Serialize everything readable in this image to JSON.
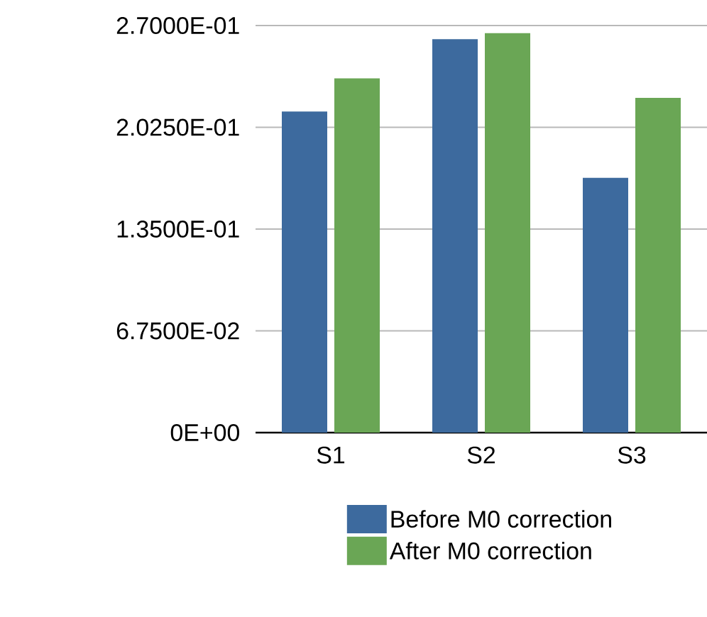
{
  "chart_data": {
    "type": "bar",
    "categories": [
      "S1",
      "S2",
      "S3"
    ],
    "series": [
      {
        "name": "Before M0 correction",
        "color": "#3d6a9e",
        "values": [
          0.213,
          0.261,
          0.169
        ]
      },
      {
        "name": "After M0 correction",
        "color": "#6aa655",
        "values": [
          0.235,
          0.265,
          0.222
        ]
      }
    ],
    "ylim": [
      0,
      0.27
    ],
    "yticks": [
      {
        "value": 0,
        "label": "0E+00"
      },
      {
        "value": 0.0675,
        "label": "6.7500E-02"
      },
      {
        "value": 0.135,
        "label": "1.3500E-01"
      },
      {
        "value": 0.2025,
        "label": "2.0250E-01"
      },
      {
        "value": 0.27,
        "label": "2.7000E-01"
      }
    ],
    "grid": "y",
    "legend": "bottom"
  }
}
